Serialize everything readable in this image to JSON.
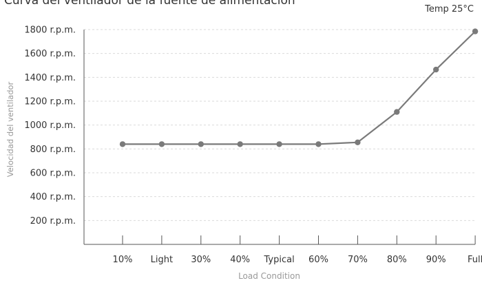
{
  "chart_data": {
    "type": "line",
    "title": "Curva del ventilador de la fuente de alimentación",
    "annotation": "Temp 25°C",
    "xlabel": "Load Condition",
    "ylabel": "Velocidad del ventilador",
    "categories": [
      "10%",
      "Light",
      "30%",
      "40%",
      "Typical",
      "60%",
      "70%",
      "80%",
      "90%",
      "Full"
    ],
    "series": [
      {
        "values": [
          840,
          840,
          840,
          840,
          840,
          840,
          855,
          1110,
          1465,
          1785
        ],
        "color": "#7a7a7a"
      }
    ],
    "yticks": [
      200,
      400,
      600,
      800,
      1000,
      1200,
      1400,
      1600,
      1800
    ],
    "ytick_labels": [
      "200 r.p.m.",
      "400 r.p.m.",
      "600 r.p.m.",
      "800 r.p.m.",
      "1000 r.p.m.",
      "1200 r.p.m.",
      "1400 r.p.m.",
      "1600 r.p.m.",
      "1800 r.p.m."
    ],
    "ylim": [
      0,
      1800
    ],
    "grid": true,
    "colors": {
      "line": "#7a7a7a",
      "grid": "#d9d9d9",
      "axis": "#555555",
      "text": "#333333",
      "muted": "#999999"
    }
  }
}
